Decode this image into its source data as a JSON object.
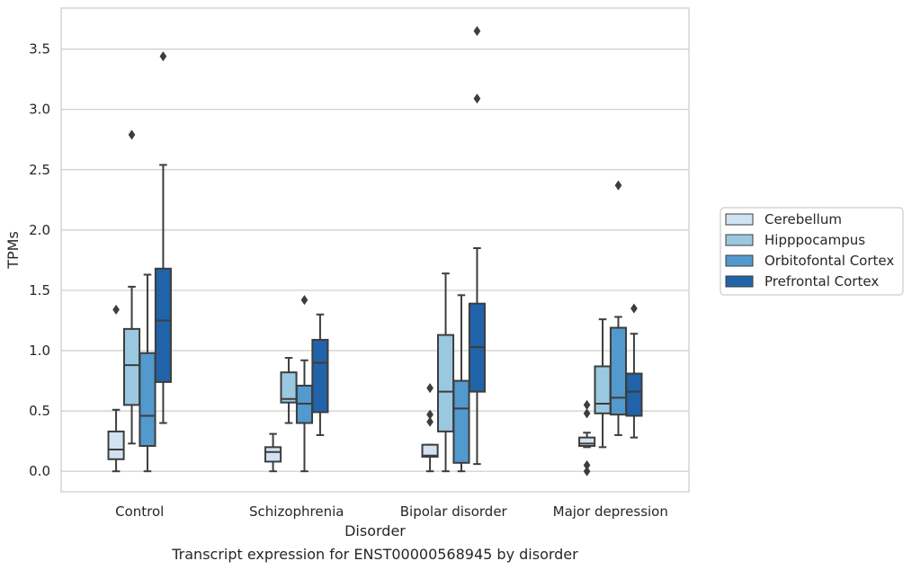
{
  "chart_data": {
    "type": "boxplot",
    "title": "",
    "caption": "Transcript expression for ENST00000568945 by disorder",
    "xlabel": "Disorder",
    "ylabel": "TPMs",
    "ylim": [
      -0.17,
      3.84
    ],
    "yticks": [
      "0.0",
      "0.5",
      "1.0",
      "1.5",
      "2.0",
      "2.5",
      "3.0",
      "3.5"
    ],
    "grid": "horizontal",
    "legend_position": "right",
    "categories": [
      "Control",
      "Schizophrenia",
      "Bipolar disorder",
      "Major depression"
    ],
    "series": [
      {
        "name": "Cerebellum",
        "color": "#d1e2f2",
        "boxes": [
          {
            "whislo": 0.0,
            "q1": 0.1,
            "med": 0.18,
            "q3": 0.33,
            "whishi": 0.51,
            "fliers": [
              1.34
            ]
          },
          {
            "whislo": 0.0,
            "q1": 0.08,
            "med": 0.16,
            "q3": 0.2,
            "whishi": 0.31,
            "fliers": []
          },
          {
            "whislo": 0.0,
            "q1": 0.12,
            "med": 0.13,
            "q3": 0.22,
            "whishi": 0.22,
            "fliers": [
              0.41,
              0.47,
              0.69
            ]
          },
          {
            "whislo": 0.2,
            "q1": 0.21,
            "med": 0.23,
            "q3": 0.28,
            "whishi": 0.32,
            "fliers": [
              0.0,
              0.05,
              0.48,
              0.55
            ]
          }
        ]
      },
      {
        "name": "Hipppocampus",
        "color": "#9ac8e0",
        "boxes": [
          {
            "whislo": 0.23,
            "q1": 0.55,
            "med": 0.88,
            "q3": 1.18,
            "whishi": 1.53,
            "fliers": [
              2.79
            ]
          },
          {
            "whislo": 0.4,
            "q1": 0.57,
            "med": 0.6,
            "q3": 0.82,
            "whishi": 0.94,
            "fliers": []
          },
          {
            "whislo": 0.0,
            "q1": 0.33,
            "med": 0.66,
            "q3": 1.13,
            "whishi": 1.64,
            "fliers": []
          },
          {
            "whislo": 0.2,
            "q1": 0.48,
            "med": 0.56,
            "q3": 0.87,
            "whishi": 1.26,
            "fliers": []
          }
        ]
      },
      {
        "name": "Orbitofontal Cortex",
        "color": "#5299cd",
        "boxes": [
          {
            "whislo": 0.0,
            "q1": 0.21,
            "med": 0.46,
            "q3": 0.98,
            "whishi": 1.63,
            "fliers": []
          },
          {
            "whislo": 0.0,
            "q1": 0.4,
            "med": 0.56,
            "q3": 0.71,
            "whishi": 0.92,
            "fliers": [
              1.42
            ]
          },
          {
            "whislo": 0.0,
            "q1": 0.07,
            "med": 0.52,
            "q3": 0.75,
            "whishi": 1.46,
            "fliers": []
          },
          {
            "whislo": 0.3,
            "q1": 0.47,
            "med": 0.61,
            "q3": 1.19,
            "whishi": 1.28,
            "fliers": [
              2.37
            ]
          }
        ]
      },
      {
        "name": "Prefrontal Cortex",
        "color": "#2163a8",
        "boxes": [
          {
            "whislo": 0.4,
            "q1": 0.74,
            "med": 1.25,
            "q3": 1.68,
            "whishi": 2.54,
            "fliers": [
              3.44
            ]
          },
          {
            "whislo": 0.3,
            "q1": 0.49,
            "med": 0.9,
            "q3": 1.09,
            "whishi": 1.3,
            "fliers": []
          },
          {
            "whislo": 0.06,
            "q1": 0.66,
            "med": 1.03,
            "q3": 1.39,
            "whishi": 1.85,
            "fliers": [
              3.09,
              3.65
            ]
          },
          {
            "whislo": 0.28,
            "q1": 0.46,
            "med": 0.66,
            "q3": 0.81,
            "whishi": 1.14,
            "fliers": [
              1.35
            ]
          }
        ]
      }
    ]
  }
}
